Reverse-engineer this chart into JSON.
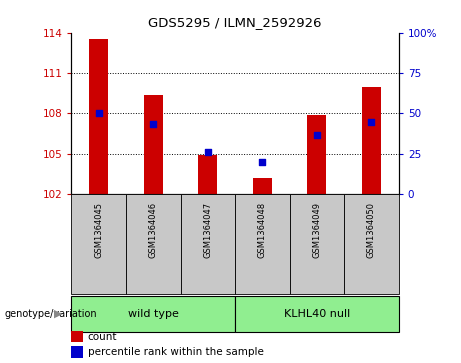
{
  "title": "GDS5295 / ILMN_2592926",
  "samples": [
    "GSM1364045",
    "GSM1364046",
    "GSM1364047",
    "GSM1364048",
    "GSM1364049",
    "GSM1364050"
  ],
  "bar_heights": [
    113.5,
    109.4,
    104.9,
    103.2,
    107.9,
    110.0
  ],
  "bar_base": 102,
  "bar_color": "#cc0000",
  "dot_color": "#0000cc",
  "dot_positions": [
    108.0,
    107.2,
    105.1,
    104.4,
    106.4,
    107.4
  ],
  "ylim_left": [
    102,
    114
  ],
  "ylim_right": [
    0,
    100
  ],
  "yticks_left": [
    102,
    105,
    108,
    111,
    114
  ],
  "yticks_right": [
    0,
    25,
    50,
    75,
    100
  ],
  "ytick_labels_right": [
    "0",
    "25",
    "50",
    "75",
    "100%"
  ],
  "hlines": [
    105,
    108,
    111
  ],
  "group_label_prefix": "genotype/variation",
  "group1_label": "wild type",
  "group2_label": "KLHL40 null",
  "green_color": "#90ee90",
  "legend_count_label": "count",
  "legend_pct_label": "percentile rank within the sample",
  "bar_width": 0.35,
  "tick_color_left": "#cc0000",
  "tick_color_right": "#0000cc",
  "background_plot": "#ffffff",
  "background_xtick": "#c8c8c8"
}
